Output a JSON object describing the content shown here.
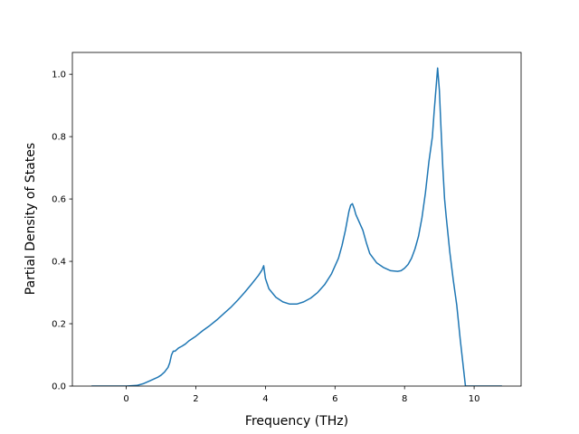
{
  "chart_data": {
    "type": "line",
    "title": "",
    "xlabel": "Frequency (THz)",
    "ylabel": "Partial Density of States",
    "xlim": [
      -1.55,
      11.35
    ],
    "ylim": [
      0.0,
      1.07
    ],
    "xticks": [
      0,
      2,
      4,
      6,
      8,
      10
    ],
    "xtick_labels": [
      "0",
      "2",
      "4",
      "6",
      "8",
      "10"
    ],
    "yticks": [
      0.0,
      0.2,
      0.4,
      0.6,
      0.8,
      1.0
    ],
    "ytick_labels": [
      "0.0",
      "0.2",
      "0.4",
      "0.6",
      "0.8",
      "1.0"
    ],
    "grid": false,
    "legend": "none",
    "series": [
      {
        "color": "#1f77b4",
        "x": [
          -1.0,
          0.0,
          0.3,
          0.5,
          0.7,
          0.9,
          1.0,
          1.1,
          1.2,
          1.25,
          1.3,
          1.35,
          1.4,
          1.5,
          1.6,
          1.7,
          1.8,
          2.0,
          2.2,
          2.4,
          2.6,
          2.8,
          3.0,
          3.2,
          3.4,
          3.6,
          3.8,
          3.9,
          3.95,
          4.0,
          4.1,
          4.3,
          4.5,
          4.7,
          4.9,
          5.1,
          5.3,
          5.5,
          5.7,
          5.9,
          6.1,
          6.2,
          6.3,
          6.4,
          6.45,
          6.5,
          6.55,
          6.6,
          6.8,
          6.9,
          7.0,
          7.2,
          7.4,
          7.6,
          7.8,
          7.9,
          8.0,
          8.1,
          8.2,
          8.3,
          8.4,
          8.5,
          8.6,
          8.7,
          8.75,
          8.8,
          8.85,
          8.9,
          8.95,
          9.0,
          9.05,
          9.1,
          9.15,
          9.2,
          9.3,
          9.4,
          9.5,
          9.6,
          9.7,
          9.75,
          9.8,
          10.0,
          10.8
        ],
        "y": [
          0.0,
          0.0,
          0.002,
          0.008,
          0.018,
          0.028,
          0.035,
          0.045,
          0.06,
          0.075,
          0.1,
          0.112,
          0.112,
          0.122,
          0.128,
          0.135,
          0.145,
          0.16,
          0.178,
          0.194,
          0.212,
          0.232,
          0.252,
          0.275,
          0.3,
          0.327,
          0.355,
          0.372,
          0.386,
          0.345,
          0.312,
          0.285,
          0.27,
          0.263,
          0.263,
          0.27,
          0.282,
          0.3,
          0.325,
          0.36,
          0.41,
          0.45,
          0.5,
          0.56,
          0.58,
          0.585,
          0.57,
          0.55,
          0.5,
          0.46,
          0.425,
          0.395,
          0.38,
          0.37,
          0.368,
          0.37,
          0.378,
          0.39,
          0.41,
          0.44,
          0.48,
          0.54,
          0.62,
          0.72,
          0.76,
          0.8,
          0.88,
          0.95,
          1.02,
          0.95,
          0.82,
          0.7,
          0.6,
          0.54,
          0.43,
          0.34,
          0.26,
          0.15,
          0.05,
          0.0,
          0.0,
          0.0,
          0.0
        ]
      }
    ]
  }
}
